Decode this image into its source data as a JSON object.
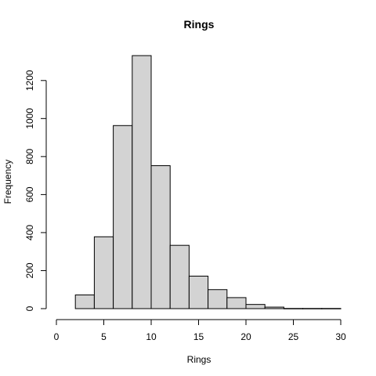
{
  "chart_data": {
    "type": "bar",
    "title": "Rings",
    "xlabel": "Rings",
    "ylabel": "Frequency",
    "bin_edges": [
      2,
      4,
      6,
      8,
      10,
      12,
      14,
      16,
      18,
      20,
      22,
      24,
      26,
      28,
      30
    ],
    "values": [
      72,
      378,
      963,
      1331,
      752,
      333,
      171,
      100,
      58,
      22,
      8,
      1,
      1,
      1
    ],
    "xlim": [
      0,
      30
    ],
    "ylim": [
      0,
      1331
    ],
    "x_ticks": [
      0,
      5,
      10,
      15,
      20,
      25,
      30
    ],
    "y_ticks": [
      0,
      200,
      400,
      600,
      800,
      1000,
      1200
    ],
    "bar_color": "#d3d3d3",
    "grid": false,
    "legend": "none"
  }
}
